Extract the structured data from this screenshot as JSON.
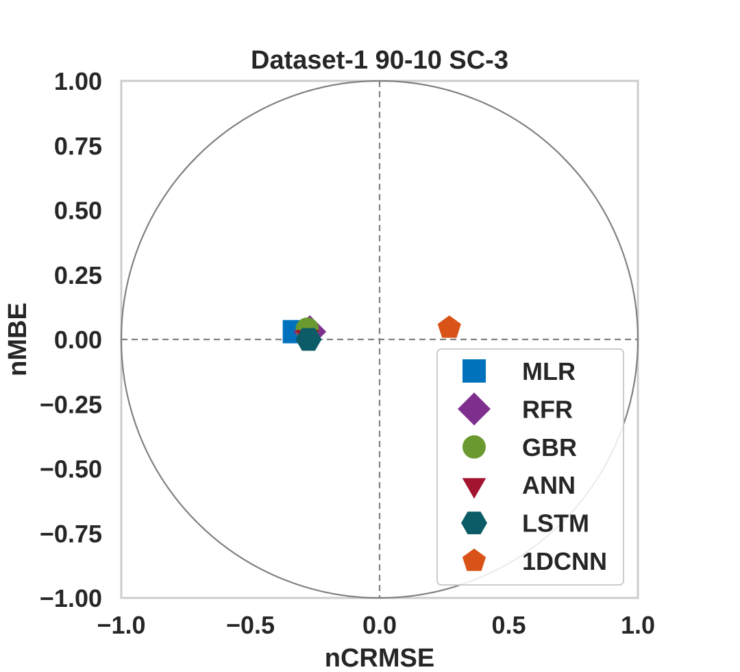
{
  "chart_data": {
    "type": "scatter",
    "title": "Dataset-1 90-10 SC-3",
    "xlabel": "nCRMSE",
    "ylabel": "nMBE",
    "xlim": [
      -1.0,
      1.0
    ],
    "ylim": [
      -1.0,
      1.0
    ],
    "x_ticks": [
      "−1.0",
      "−0.5",
      "0.0",
      "0.5",
      "1.0"
    ],
    "y_ticks": [
      "1.00",
      "0.75",
      "0.50",
      "0.25",
      "0.00",
      "−0.25",
      "−0.50",
      "−0.75",
      "−1.00"
    ],
    "grid": false,
    "unit_circle": true,
    "reference_lines": [
      "x=0",
      "y=0"
    ],
    "legend_position": "lower-right",
    "series": [
      {
        "name": "MLR",
        "marker": "square",
        "color": "#0072BD",
        "x": -0.33,
        "y": 0.03
      },
      {
        "name": "RFR",
        "marker": "diamond",
        "color": "#7E2F8E",
        "x": -0.27,
        "y": 0.03
      },
      {
        "name": "GBR",
        "marker": "circle",
        "color": "#6A9A2F",
        "x": -0.28,
        "y": 0.04
      },
      {
        "name": "ANN",
        "marker": "triangle-down",
        "color": "#A2142F",
        "x": -0.28,
        "y": 0.01
      },
      {
        "name": "LSTM",
        "marker": "hexagon",
        "color": "#0B5C66",
        "x": -0.275,
        "y": 0.0
      },
      {
        "name": "1DCNN",
        "marker": "pentagon",
        "color": "#D95319",
        "x": 0.27,
        "y": 0.045
      }
    ]
  }
}
